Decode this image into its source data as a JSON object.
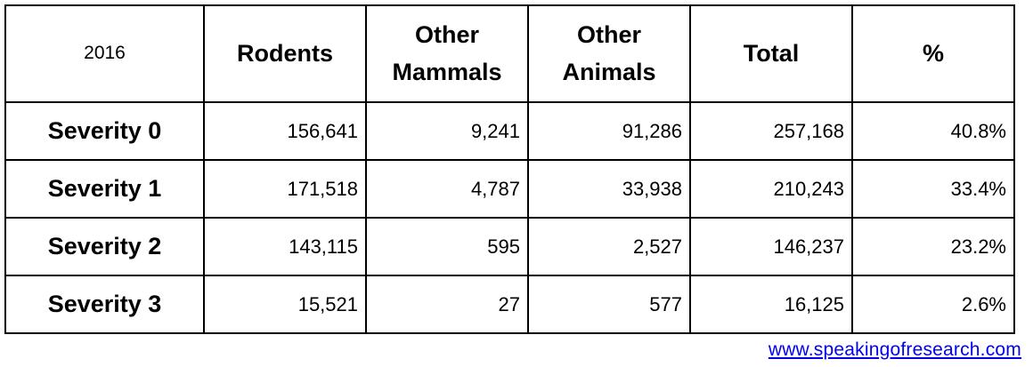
{
  "chart_data": {
    "type": "table",
    "columns": [
      "2016",
      "Rodents",
      "Other Mammals",
      "Other Animals",
      "Total",
      "%"
    ],
    "header_lines": [
      [
        "2016"
      ],
      [
        "Rodents"
      ],
      [
        "Other",
        "Mammals"
      ],
      [
        "Other",
        "Animals"
      ],
      [
        "Total"
      ],
      [
        "%"
      ]
    ],
    "rows": [
      [
        "Severity 0",
        "156,641",
        "9,241",
        "91,286",
        "257,168",
        "40.8%"
      ],
      [
        "Severity 1",
        "171,518",
        "4,787",
        "33,938",
        "210,243",
        "33.4%"
      ],
      [
        "Severity 2",
        "143,115",
        "595",
        "2,527",
        "146,237",
        "23.2%"
      ],
      [
        "Severity 3",
        "15,521",
        "27",
        "577",
        "16,125",
        "2.6%"
      ]
    ]
  },
  "footer": {
    "link_text": "www.speakingofresearch.com",
    "link_color": "#0000ee"
  }
}
